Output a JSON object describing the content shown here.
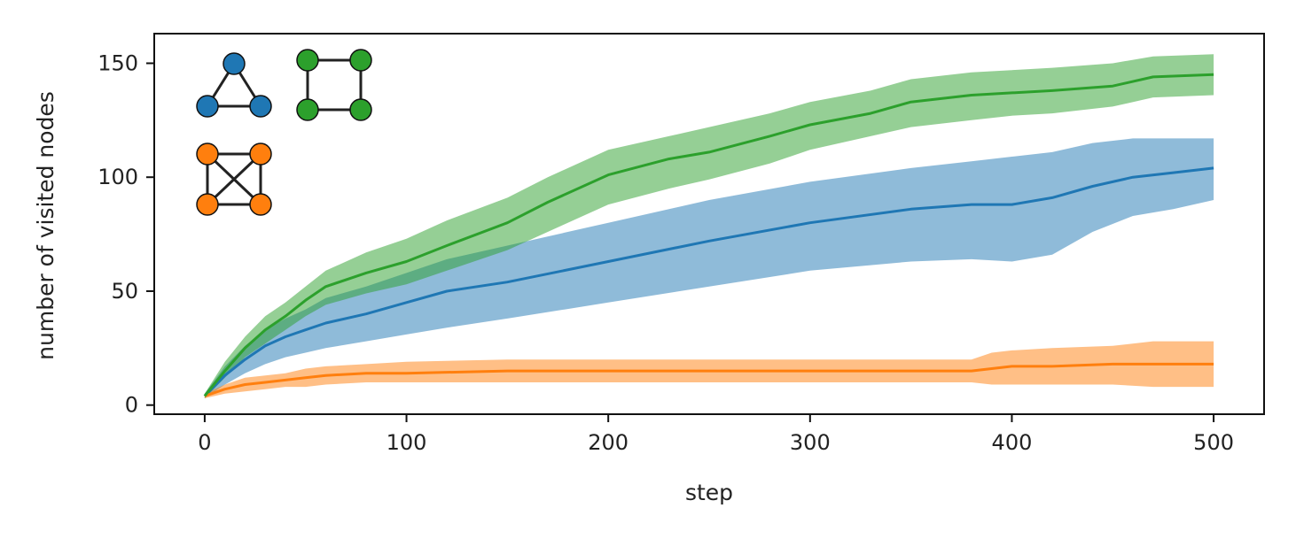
{
  "chart_data": {
    "type": "line",
    "title": "",
    "xlabel": "step",
    "ylabel": "number of visited nodes",
    "xlim": [
      -25,
      525
    ],
    "ylim": [
      -4,
      163
    ],
    "xticks": [
      0,
      100,
      200,
      300,
      400,
      500
    ],
    "yticks": [
      0,
      50,
      100,
      150
    ],
    "grid": false,
    "legend": "top-left graph-icon insets: triangle (blue), square (green), complete graph K4 (orange)",
    "series": [
      {
        "color": "#1f77b4",
        "band_color": "#1f77b4",
        "x": [
          0,
          10,
          20,
          30,
          40,
          50,
          60,
          80,
          100,
          120,
          150,
          200,
          250,
          300,
          350,
          380,
          400,
          420,
          440,
          460,
          480,
          500
        ],
        "mean": [
          4,
          13,
          20,
          26,
          30,
          33,
          36,
          40,
          45,
          50,
          54,
          63,
          72,
          80,
          86,
          88,
          88,
          91,
          96,
          100,
          102,
          104
        ],
        "lower": [
          3,
          9,
          14,
          18,
          21,
          23,
          25,
          28,
          31,
          34,
          38,
          45,
          52,
          59,
          63,
          64,
          63,
          66,
          76,
          83,
          86,
          90
        ],
        "upper": [
          5,
          17,
          26,
          33,
          38,
          42,
          47,
          52,
          58,
          64,
          70,
          80,
          90,
          98,
          104,
          107,
          109,
          111,
          115,
          117,
          117,
          117
        ]
      },
      {
        "color": "#2ca02c",
        "band_color": "#2ca02c",
        "x": [
          0,
          10,
          20,
          30,
          40,
          50,
          60,
          80,
          100,
          120,
          150,
          170,
          200,
          230,
          250,
          280,
          300,
          330,
          350,
          380,
          400,
          420,
          450,
          470,
          500
        ],
        "mean": [
          4,
          15,
          25,
          33,
          39,
          46,
          52,
          58,
          63,
          70,
          80,
          89,
          101,
          108,
          111,
          118,
          123,
          128,
          133,
          136,
          137,
          138,
          140,
          144,
          145
        ],
        "lower": [
          3,
          12,
          21,
          27,
          33,
          39,
          44,
          49,
          53,
          59,
          68,
          76,
          88,
          95,
          99,
          106,
          112,
          118,
          122,
          125,
          127,
          128,
          131,
          135,
          136
        ],
        "upper": [
          5,
          19,
          30,
          39,
          45,
          52,
          59,
          67,
          73,
          81,
          91,
          100,
          112,
          118,
          122,
          128,
          133,
          138,
          143,
          146,
          147,
          148,
          150,
          153,
          154
        ]
      },
      {
        "color": "#ff7f0e",
        "band_color": "#ff7f0e",
        "x": [
          0,
          10,
          20,
          30,
          40,
          50,
          60,
          80,
          100,
          150,
          200,
          250,
          300,
          350,
          380,
          390,
          400,
          420,
          450,
          470,
          500
        ],
        "mean": [
          4,
          7,
          9,
          10,
          11,
          12,
          13,
          14,
          14,
          15,
          15,
          15,
          15,
          15,
          15,
          16,
          17,
          17,
          18,
          18,
          18
        ],
        "lower": [
          3,
          5,
          6,
          7,
          8,
          8,
          9,
          10,
          10,
          10,
          10,
          10,
          10,
          10,
          10,
          9,
          9,
          9,
          9,
          8,
          8
        ],
        "upper": [
          5,
          9,
          12,
          13,
          14,
          16,
          17,
          18,
          19,
          20,
          20,
          20,
          20,
          20,
          20,
          23,
          24,
          25,
          26,
          28,
          28
        ]
      }
    ],
    "insets": [
      {
        "shape": "triangle",
        "color": "#1f77b4"
      },
      {
        "shape": "square",
        "color": "#2ca02c"
      },
      {
        "shape": "complete-k4",
        "color": "#ff7f0e"
      }
    ]
  }
}
